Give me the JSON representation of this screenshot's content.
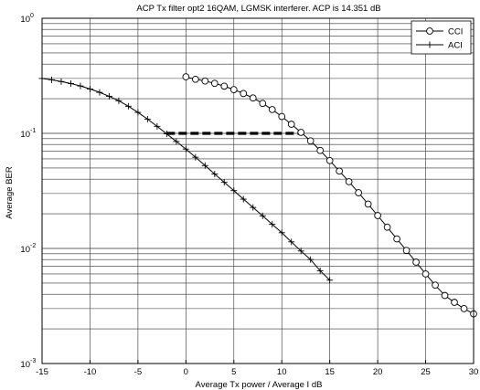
{
  "chart_data": {
    "type": "line",
    "title": "ACP Tx filter opt2 16QAM, LGMSK interferer. ACP is 14.351 dB",
    "xlabel": "Average Tx power / Average I  dB",
    "ylabel": "Average BER",
    "xlim": [
      -15,
      30
    ],
    "ylim": [
      0.001,
      1
    ],
    "yscale": "log",
    "grid": true,
    "legend_position": "top-right",
    "x_ticks": [
      "-15",
      "-10",
      "-5",
      "0",
      "5",
      "10",
      "15",
      "20",
      "25",
      "30"
    ],
    "y_ticks": [
      {
        "base": "10",
        "exp": "-3"
      },
      {
        "base": "10",
        "exp": "-2"
      },
      {
        "base": "10",
        "exp": "-1"
      },
      {
        "base": "10",
        "exp": "0"
      }
    ],
    "series": [
      {
        "name": "CCI",
        "marker": "circle",
        "color": "#000000",
        "x": [
          0,
          1,
          2,
          3,
          4,
          5,
          6,
          7,
          8,
          9,
          10,
          11,
          12,
          13,
          14,
          15,
          16,
          17,
          18,
          19,
          20,
          21,
          22,
          23,
          24,
          25,
          26,
          27,
          28,
          29,
          30
        ],
        "y": [
          0.31,
          0.295,
          0.285,
          0.272,
          0.257,
          0.24,
          0.222,
          0.203,
          0.182,
          0.161,
          0.14,
          0.12,
          0.102,
          0.086,
          0.071,
          0.058,
          0.047,
          0.038,
          0.0305,
          0.0243,
          0.0193,
          0.0153,
          0.0121,
          0.0096,
          0.0076,
          0.006,
          0.0048,
          0.0039,
          0.0034,
          0.003,
          0.0027
        ]
      },
      {
        "name": "ACI",
        "marker": "plus",
        "color": "#000000",
        "x": [
          -15,
          -14,
          -13,
          -12,
          -11,
          -10,
          -9,
          -8,
          -7,
          -6,
          -5,
          -4,
          -3,
          -2,
          -1,
          0,
          1,
          2,
          3,
          4,
          5,
          6,
          7,
          8,
          9,
          10,
          11,
          12,
          13,
          14,
          15
        ],
        "y": [
          0.3,
          0.292,
          0.282,
          0.271,
          0.258,
          0.243,
          0.227,
          0.21,
          0.192,
          0.172,
          0.152,
          0.133,
          0.115,
          0.099,
          0.085,
          0.073,
          0.062,
          0.0525,
          0.0443,
          0.0375,
          0.0318,
          0.0268,
          0.0227,
          0.0192,
          0.0162,
          0.0137,
          0.0114,
          0.0095,
          0.008,
          0.0064,
          0.0053
        ]
      }
    ],
    "annotations": [
      {
        "type": "dashed-line",
        "x": [
          -2,
          12.3
        ],
        "y": [
          0.1,
          0.1
        ],
        "color": "#000000"
      }
    ]
  }
}
